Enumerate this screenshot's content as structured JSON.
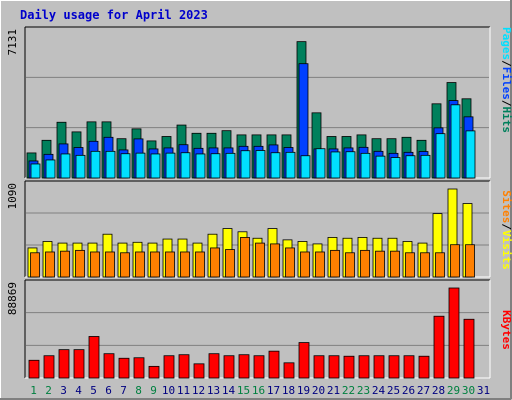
{
  "title": "Daily usage for April 2023",
  "colors": {
    "background": "#c0c0c0",
    "plot_bg": "#c0c0c0",
    "title": "#0000cc",
    "hits": "#00805c",
    "files": "#0040ff",
    "pages": "#00e0ff",
    "visits": "#ffff00",
    "sites": "#ff8000",
    "kbytes": "#ff0000",
    "weekend_label": "#008040",
    "weekday_label": "#000080"
  },
  "legend_top": {
    "hits": "Hits",
    "files": "Files",
    "pages": "Pages",
    "sep": "/"
  },
  "legend_mid": {
    "visits": "Visits",
    "sites": "Sites",
    "sep": "/"
  },
  "legend_bot": {
    "kbytes": "KBytes"
  },
  "chart_data": [
    {
      "type": "bar",
      "title": "Daily usage for April 2023",
      "ymax_label": "7131",
      "ymax": 7131,
      "categories": [
        "1",
        "2",
        "3",
        "4",
        "5",
        "6",
        "7",
        "8",
        "9",
        "10",
        "11",
        "12",
        "13",
        "14",
        "15",
        "16",
        "17",
        "18",
        "19",
        "20",
        "21",
        "22",
        "23",
        "24",
        "25",
        "26",
        "27",
        "28",
        "29",
        "30",
        "31"
      ],
      "weekend_days": [
        "1",
        "2",
        "8",
        "9",
        "15",
        "16",
        "22",
        "23",
        "29",
        "30"
      ],
      "series": [
        {
          "name": "Hits",
          "values": [
            1250,
            1880,
            2780,
            2300,
            2800,
            2800,
            1960,
            2450,
            1850,
            2070,
            2640,
            2230,
            2230,
            2360,
            2150,
            2150,
            2150,
            2150,
            6800,
            3250,
            2070,
            2070,
            2150,
            1960,
            1960,
            2030,
            1880,
            3700,
            4760,
            3950,
            null
          ]
        },
        {
          "name": "Files",
          "values": [
            850,
            1180,
            1700,
            1520,
            1830,
            2030,
            1400,
            1950,
            1450,
            1500,
            1660,
            1480,
            1500,
            1500,
            1580,
            1580,
            1650,
            1520,
            5700,
            1450,
            1450,
            1500,
            1530,
            1330,
            1230,
            1280,
            1320,
            2500,
            3860,
            3050,
            null
          ]
        },
        {
          "name": "Pages",
          "values": [
            700,
            900,
            1200,
            1130,
            1330,
            1330,
            1210,
            1240,
            1200,
            1240,
            1260,
            1200,
            1210,
            1230,
            1360,
            1370,
            1260,
            1280,
            1110,
            1460,
            1300,
            1310,
            1230,
            1090,
            1020,
            1110,
            1130,
            2210,
            3650,
            2350,
            null
          ]
        }
      ]
    },
    {
      "type": "bar",
      "ymax_label": "1090",
      "ymax": 1090,
      "categories": [
        "1",
        "2",
        "3",
        "4",
        "5",
        "6",
        "7",
        "8",
        "9",
        "10",
        "11",
        "12",
        "13",
        "14",
        "15",
        "16",
        "17",
        "18",
        "19",
        "20",
        "21",
        "22",
        "23",
        "24",
        "25",
        "26",
        "27",
        "28",
        "29",
        "30",
        "31"
      ],
      "series": [
        {
          "name": "Visits",
          "values": [
            360,
            440,
            420,
            420,
            420,
            530,
            420,
            430,
            420,
            470,
            470,
            420,
            530,
            600,
            560,
            480,
            600,
            460,
            440,
            410,
            490,
            480,
            490,
            480,
            480,
            440,
            420,
            785,
            1090,
            910,
            null
          ]
        },
        {
          "name": "Sites",
          "values": [
            300,
            310,
            320,
            330,
            310,
            310,
            300,
            310,
            310,
            310,
            310,
            310,
            360,
            340,
            490,
            420,
            410,
            360,
            310,
            310,
            330,
            300,
            330,
            320,
            320,
            300,
            300,
            300,
            400,
            400,
            null
          ]
        }
      ]
    },
    {
      "type": "bar",
      "ymax_label": "88869",
      "ymax": 88869,
      "categories": [
        "1",
        "2",
        "3",
        "4",
        "5",
        "6",
        "7",
        "8",
        "9",
        "10",
        "11",
        "12",
        "13",
        "14",
        "15",
        "16",
        "17",
        "18",
        "19",
        "20",
        "21",
        "22",
        "23",
        "24",
        "25",
        "26",
        "27",
        "28",
        "29",
        "30",
        "31"
      ],
      "series": [
        {
          "name": "KBytes",
          "values": [
            17500,
            22000,
            28000,
            28000,
            41000,
            24000,
            19500,
            20000,
            11500,
            22000,
            23000,
            14000,
            24000,
            22000,
            23000,
            22000,
            26500,
            15000,
            35000,
            22000,
            22000,
            21500,
            22000,
            22000,
            22000,
            22000,
            21500,
            61000,
            88869,
            58000,
            null
          ]
        }
      ]
    }
  ]
}
